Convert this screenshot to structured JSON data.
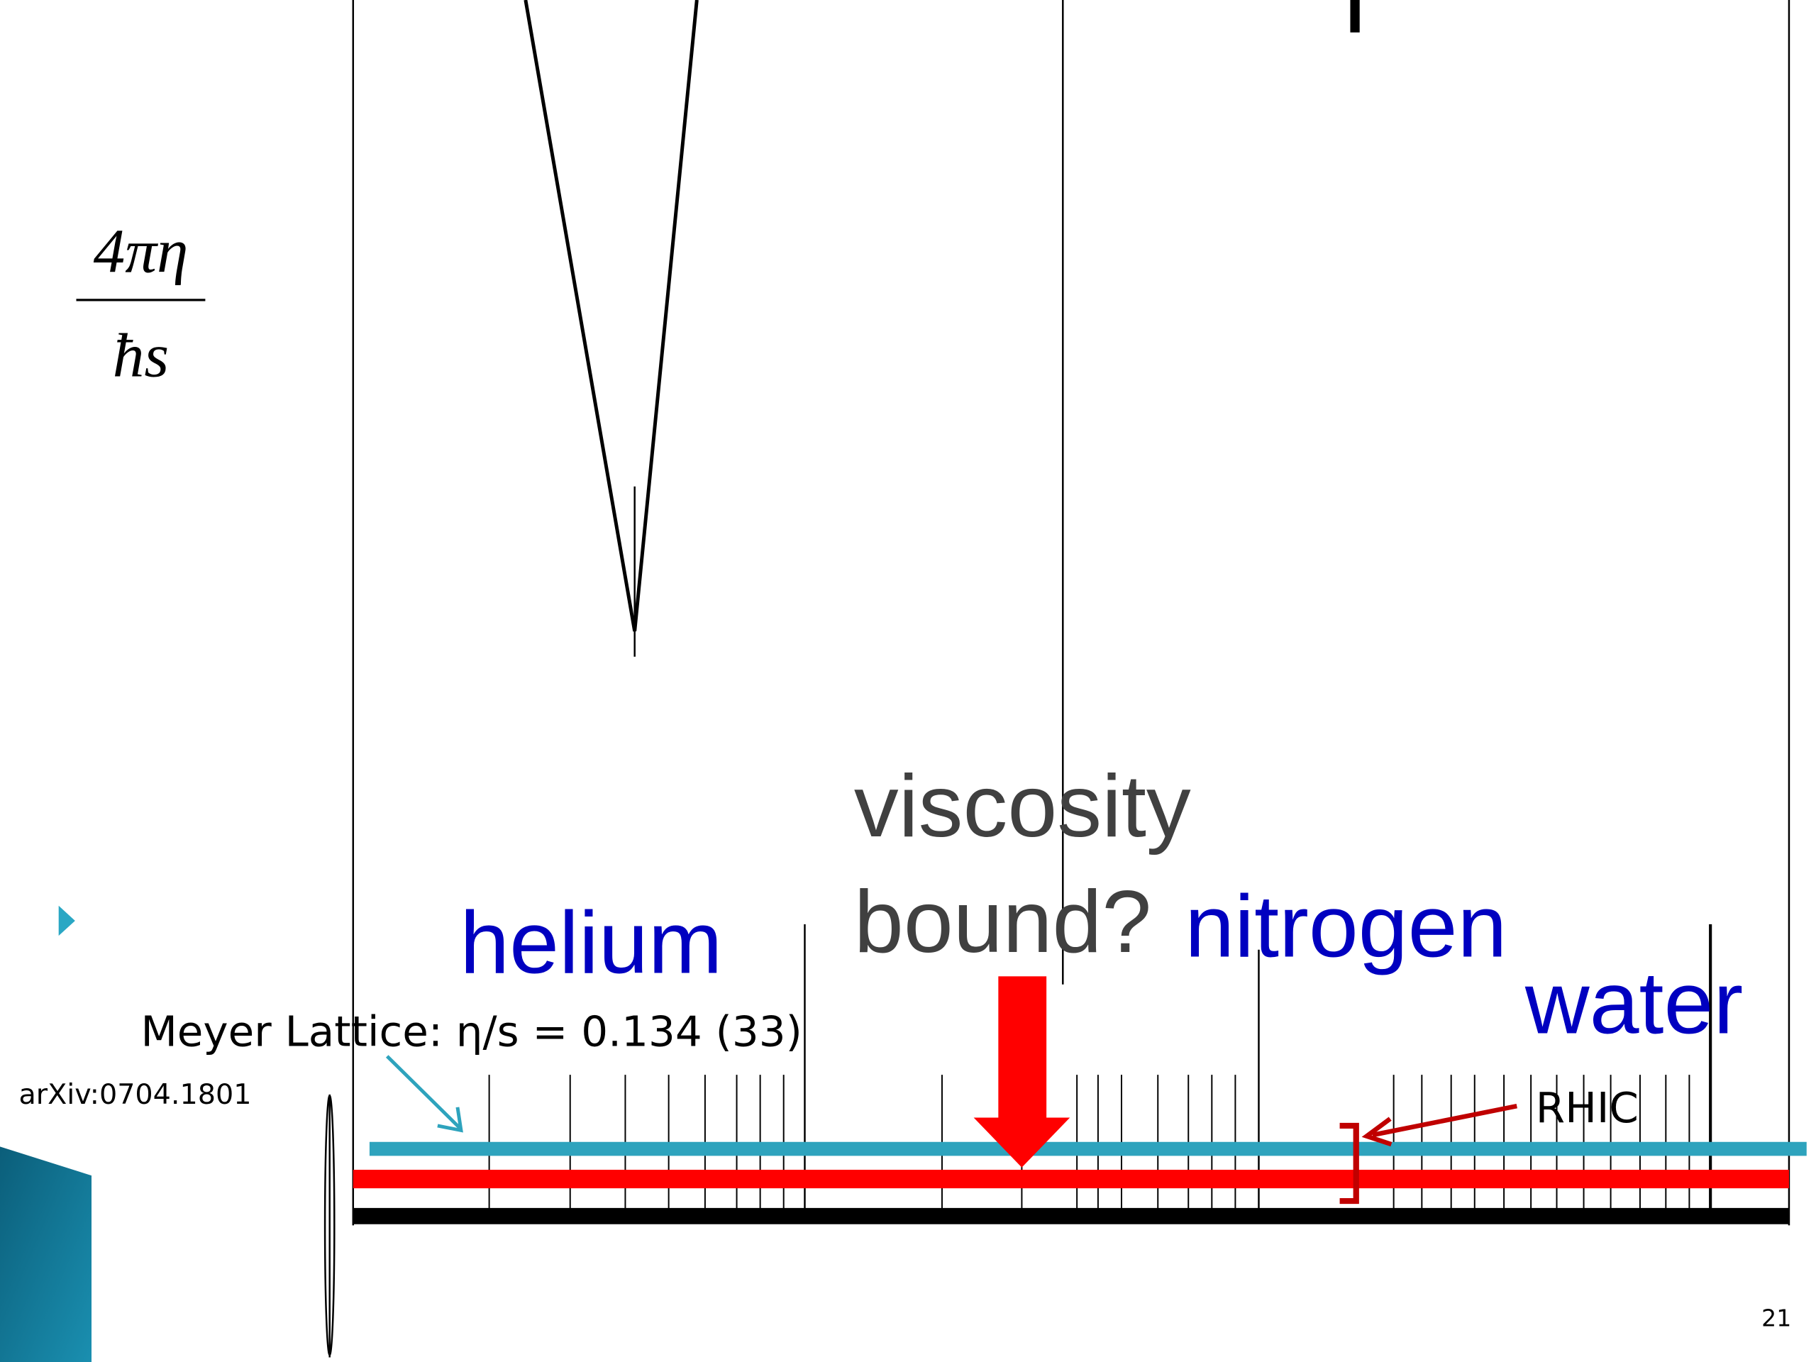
{
  "slide": {
    "ylabel": {
      "numerator": "4πη",
      "denominator": "ħs"
    },
    "labels": {
      "helium": "helium",
      "viscosity": "viscosity",
      "bound": "bound?",
      "nitrogen": "nitrogen",
      "water": "water"
    },
    "lattice": "Meyer Lattice: η/s = 0.134 (33)",
    "reference": "arXiv:0704.1801",
    "rhic": "RHIC",
    "page_number": "21"
  }
}
